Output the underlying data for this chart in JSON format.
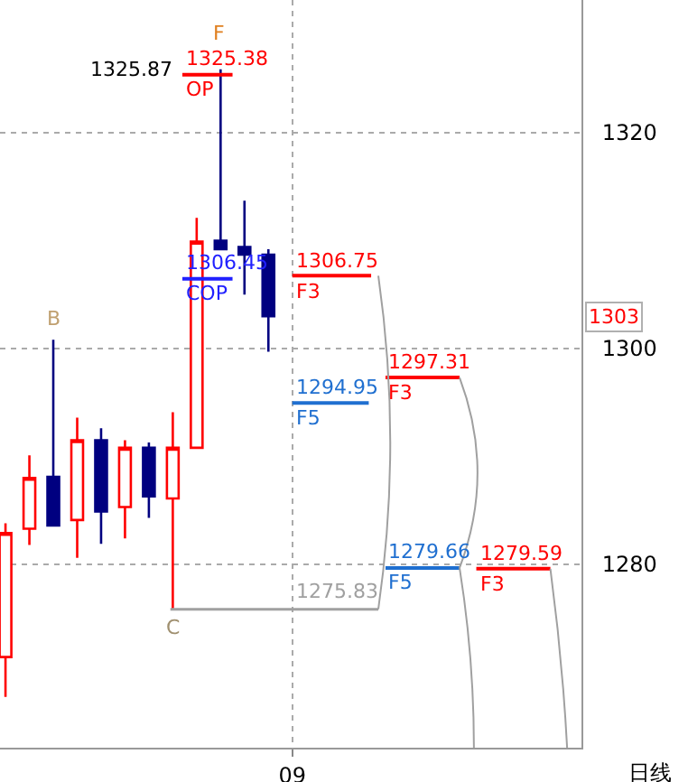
{
  "chart_data": {
    "type": "candlestick",
    "categories": [
      null,
      null,
      null,
      null,
      null,
      null,
      null,
      null,
      null,
      null,
      null,
      null,
      "09",
      null,
      null,
      null,
      null,
      null,
      null,
      null,
      null,
      null,
      null,
      null,
      null
    ],
    "ohlc": [
      [
        1271.4,
        1283.8,
        1267.7,
        1282.9
      ],
      [
        1283.3,
        1290.1,
        1281.8,
        1288.0
      ],
      [
        1288.1,
        1300.8,
        1283.6,
        1283.6
      ],
      [
        1284.1,
        1293.6,
        1280.6,
        1291.5
      ],
      [
        1291.5,
        1292.6,
        1281.9,
        1284.9
      ],
      [
        1285.3,
        1291.5,
        1282.4,
        1290.8
      ],
      [
        1290.8,
        1291.3,
        1284.3,
        1286.3
      ],
      [
        1286.1,
        1294.1,
        1275.83,
        1290.8
      ],
      [
        1290.8,
        1312.1,
        1290.8,
        1309.9
      ],
      [
        1310.0,
        1325.87,
        1309.2,
        1309.2
      ],
      [
        1309.4,
        1313.7,
        1305.0,
        1308.7
      ],
      [
        1308.7,
        1309.2,
        1299.7,
        1303.0
      ],
      null,
      null,
      null,
      null,
      null,
      null,
      null,
      null,
      null,
      null,
      null,
      null,
      null
    ],
    "colors": [
      "#ff0000",
      "#ff0000",
      "#000080",
      "#ff0000",
      "#000080",
      "#ff0000",
      "#000080",
      "#ff0000",
      "#ff0000",
      "#000080",
      "#000080",
      "#000080",
      null,
      null,
      null,
      null,
      null,
      null,
      null,
      null,
      null,
      null,
      null,
      null,
      null
    ],
    "ylim": [
      1263,
      1332.3
    ],
    "yticks": [
      1280,
      1300,
      1320
    ],
    "grid": true,
    "ref_lines": [
      {
        "axis": "y",
        "value": 1325.38,
        "label": "1325.38",
        "color": "#ff0000"
      },
      {
        "axis": "y",
        "value": 1306.45,
        "label": "1306.45",
        "color": "#2020ff"
      },
      {
        "axis": "y",
        "value": 1306.75,
        "label": "1306.75",
        "color": "#ff0000"
      },
      {
        "axis": "y",
        "value": 1294.95,
        "label": "1294.95",
        "color": "#1f6fd0"
      },
      {
        "axis": "y",
        "value": 1297.31,
        "label": "1297.31",
        "color": "#ff0000"
      },
      {
        "axis": "y",
        "value": 1279.66,
        "label": "1279.66",
        "color": "#1f6fd0"
      },
      {
        "axis": "y",
        "value": 1279.59,
        "label": "1279.59",
        "color": "#ff0000"
      },
      {
        "axis": "y",
        "value": 1275.83,
        "label": "1275.83",
        "color": "#a0a0a0"
      }
    ],
    "annotations": [
      "F",
      "OP",
      "1325.87",
      "COP",
      "B",
      "C",
      "F3",
      "F5",
      "F3",
      "F5",
      "F3",
      "1303",
      "日线"
    ]
  }
}
